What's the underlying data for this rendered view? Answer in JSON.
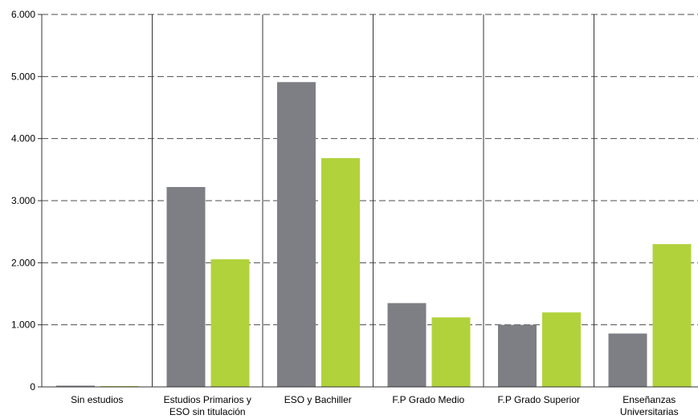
{
  "chart_data": {
    "type": "bar",
    "categories": [
      [
        "Sin estudios"
      ],
      [
        "Estudios Primarios y",
        "ESO sin titulación"
      ],
      [
        "ESO y Bachiller"
      ],
      [
        "F.P Grado Medio"
      ],
      [
        "F.P Grado Superior"
      ],
      [
        "Enseñanzas",
        "Universitarias"
      ]
    ],
    "series": [
      {
        "values": [
          20,
          3220,
          4910,
          1350,
          1000,
          860
        ],
        "color": "#7d7f84"
      },
      {
        "values": [
          10,
          2055,
          3685,
          1120,
          1200,
          2300
        ],
        "color": "#b1d23b"
      }
    ],
    "ylim": [
      0,
      6000
    ],
    "yticks": [
      0,
      1000,
      2000,
      3000,
      4000,
      5000,
      6000
    ],
    "ytick_labels": [
      "0",
      "1.000",
      "2.000",
      "3.000",
      "4.000",
      "5.000",
      "6.000"
    ],
    "grid": "dashed horizontal",
    "category_separators": true,
    "legend": "none",
    "title": "",
    "xlabel": "",
    "ylabel": ""
  }
}
